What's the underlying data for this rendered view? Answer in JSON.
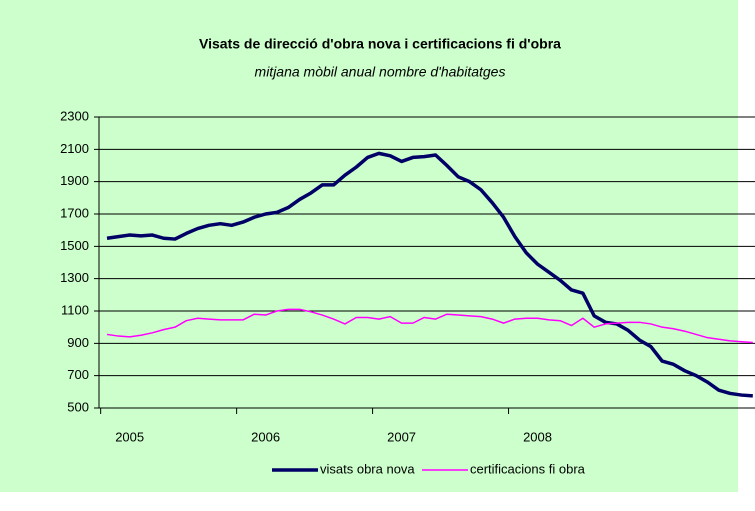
{
  "chart_data": {
    "type": "line",
    "title": "Visats de direcció d'obra nova i certificacions fi d'obra",
    "subtitle": "mitjana mòbil anual nombre d'habitatges",
    "categories": [
      null,
      null,
      "2005",
      null,
      null,
      null,
      null,
      null,
      null,
      null,
      null,
      null,
      null,
      null,
      "2006",
      null,
      null,
      null,
      null,
      null,
      null,
      null,
      null,
      null,
      null,
      null,
      "2007",
      null,
      null,
      null,
      null,
      null,
      null,
      null,
      null,
      null,
      null,
      null,
      "2008",
      null,
      null,
      null,
      null,
      null,
      null,
      null,
      null,
      null,
      null,
      null,
      null,
      null,
      null,
      null,
      null,
      null,
      null,
      null
    ],
    "series": [
      {
        "name": "visats obra nova",
        "color": "#000066",
        "values": [
          1550,
          1560,
          1570,
          1565,
          1570,
          1550,
          1545,
          1580,
          1610,
          1630,
          1640,
          1630,
          1650,
          1680,
          1700,
          1710,
          1740,
          1790,
          1830,
          1880,
          1880,
          1940,
          1990,
          2050,
          2075,
          2060,
          2025,
          2050,
          2055,
          2065,
          2000,
          1930,
          1900,
          1850,
          1770,
          1680,
          1560,
          1460,
          1390,
          1340,
          1290,
          1230,
          1210,
          1070,
          1030,
          1020,
          980,
          920,
          880,
          790,
          770,
          730,
          700,
          660,
          610,
          590,
          580,
          575
        ]
      },
      {
        "name": "certificacions fi obra",
        "color": "#ff00ff",
        "values": [
          955,
          945,
          940,
          950,
          965,
          985,
          1000,
          1040,
          1055,
          1050,
          1045,
          1045,
          1045,
          1080,
          1075,
          1100,
          1110,
          1110,
          1095,
          1075,
          1050,
          1020,
          1060,
          1060,
          1050,
          1065,
          1025,
          1025,
          1060,
          1050,
          1080,
          1075,
          1070,
          1065,
          1050,
          1025,
          1050,
          1055,
          1055,
          1045,
          1040,
          1010,
          1055,
          1000,
          1020,
          1025,
          1030,
          1030,
          1020,
          1000,
          990,
          975,
          955,
          935,
          925,
          915,
          910,
          905
        ]
      }
    ],
    "ylim": [
      500,
      2300
    ],
    "yticks": [
      500,
      700,
      900,
      1100,
      1300,
      1500,
      1700,
      1900,
      2100,
      2300
    ],
    "grid": true
  }
}
